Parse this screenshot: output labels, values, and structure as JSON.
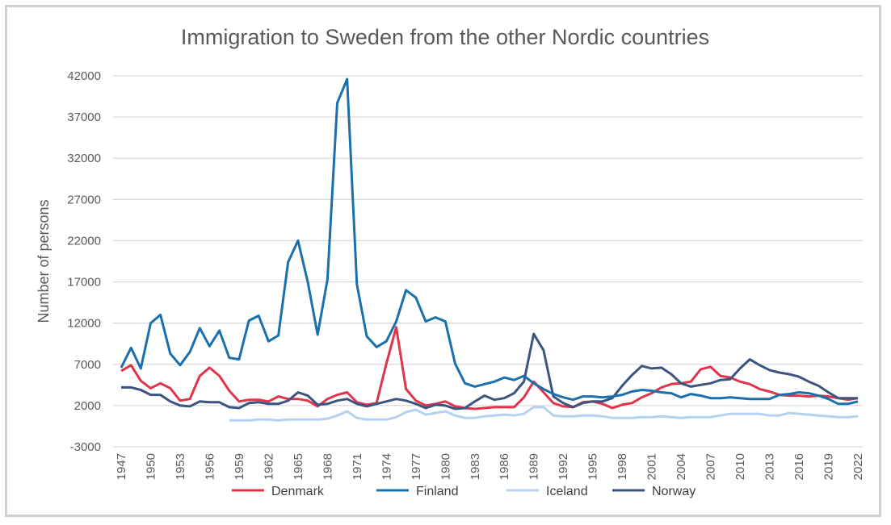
{
  "chart_data": {
    "type": "line",
    "title": "Immigration to Sweden from the other Nordic countries",
    "xlabel": "",
    "ylabel": "Number of persons",
    "ylim": [
      -3000,
      42000
    ],
    "yticks": [
      -3000,
      2000,
      7000,
      12000,
      17000,
      22000,
      27000,
      32000,
      37000,
      42000
    ],
    "x_start": 1947,
    "x_end": 2022,
    "xtick_step": 3,
    "grid": "horizontal",
    "legend_position": "bottom",
    "series": [
      {
        "name": "Denmark",
        "color": "#e0344a",
        "values": [
          6200,
          6900,
          5000,
          4100,
          4700,
          4100,
          2600,
          2800,
          5600,
          6600,
          5600,
          3800,
          2500,
          2700,
          2700,
          2500,
          3100,
          2800,
          2800,
          2600,
          1900,
          2800,
          3300,
          3600,
          2400,
          2100,
          2300,
          7100,
          11500,
          4000,
          2600,
          2000,
          2200,
          2500,
          1900,
          1700,
          1600,
          1700,
          1800,
          1800,
          1800,
          3000,
          4900,
          3600,
          2300,
          1900,
          1800,
          2400,
          2500,
          2200,
          1700,
          2100,
          2300,
          3000,
          3500,
          4200,
          4600,
          4700,
          4900,
          6400,
          6700,
          5600,
          5400,
          4900,
          4600,
          4000,
          3700,
          3300,
          3200,
          3200,
          3100,
          3200,
          3100,
          2900,
          2700,
          2900
        ]
      },
      {
        "name": "Finland",
        "color": "#1a6fad",
        "values": [
          6600,
          9000,
          6500,
          12000,
          13000,
          8300,
          6900,
          8500,
          11400,
          9200,
          11100,
          7800,
          7600,
          12300,
          12900,
          9800,
          10500,
          19400,
          22000,
          17000,
          10600,
          17300,
          38700,
          41600,
          16700,
          10400,
          9100,
          9800,
          12200,
          16000,
          15100,
          12200,
          12700,
          12200,
          7100,
          4700,
          4300,
          4600,
          4900,
          5400,
          5100,
          5600,
          4700,
          4000,
          3400,
          3000,
          2700,
          3100,
          3100,
          3000,
          3100,
          3300,
          3700,
          3900,
          3800,
          3600,
          3500,
          3000,
          3400,
          3200,
          2900,
          2900,
          3000,
          2900,
          2800,
          2800,
          2800,
          3300,
          3400,
          3600,
          3500,
          3200,
          2800,
          2200,
          2200,
          2500
        ]
      },
      {
        "name": "Iceland",
        "color": "#b4d2ef",
        "values": [
          null,
          null,
          null,
          null,
          null,
          null,
          null,
          null,
          null,
          null,
          null,
          200,
          200,
          200,
          300,
          300,
          200,
          300,
          300,
          300,
          300,
          400,
          800,
          1300,
          500,
          300,
          300,
          300,
          600,
          1200,
          1500,
          900,
          1100,
          1300,
          800,
          500,
          500,
          700,
          800,
          900,
          800,
          1000,
          1800,
          1800,
          800,
          700,
          700,
          800,
          800,
          700,
          500,
          500,
          500,
          600,
          600,
          700,
          600,
          500,
          600,
          600,
          600,
          800,
          1000,
          1000,
          1000,
          1000,
          800,
          800,
          1100,
          1000,
          900,
          800,
          700,
          600,
          600,
          700
        ]
      },
      {
        "name": "Norway",
        "color": "#3b5580",
        "values": [
          4200,
          4200,
          3900,
          3300,
          3300,
          2500,
          2000,
          1900,
          2500,
          2400,
          2400,
          1800,
          1700,
          2300,
          2400,
          2200,
          2200,
          2600,
          3600,
          3200,
          2100,
          2200,
          2600,
          2800,
          2200,
          1900,
          2200,
          2500,
          2800,
          2600,
          2200,
          1700,
          2100,
          2000,
          1600,
          1700,
          2500,
          3200,
          2700,
          2900,
          3500,
          4900,
          10700,
          8700,
          3100,
          2300,
          1800,
          2300,
          2500,
          2500,
          2900,
          4400,
          5700,
          6800,
          6500,
          6600,
          5800,
          4700,
          4300,
          4500,
          4700,
          5100,
          5200,
          6500,
          7600,
          6900,
          6300,
          6000,
          5800,
          5500,
          4900,
          4400,
          3600,
          2900,
          2900,
          2900
        ]
      }
    ]
  }
}
